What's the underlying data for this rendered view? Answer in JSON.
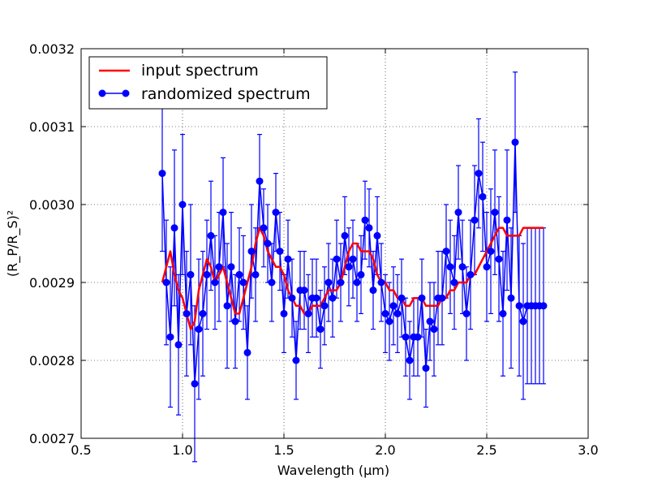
{
  "chart_data": {
    "type": "line",
    "xlabel": "Wavelength ($\\mu m$)",
    "xlabel_display": "Wavelength (μm)",
    "ylabel": "$(R_P/R_S)^2$",
    "ylabel_display": "(R_P/R_S)²",
    "xlim": [
      0.5,
      3.0
    ],
    "ylim": [
      0.0027,
      0.0032
    ],
    "xticks": [
      0.5,
      1.0,
      1.5,
      2.0,
      2.5,
      3.0
    ],
    "xtick_labels": [
      "0.5",
      "1.0",
      "1.5",
      "2.0",
      "2.5",
      "3.0"
    ],
    "yticks": [
      0.0027,
      0.0028,
      0.0029,
      0.003,
      0.0031,
      0.0032
    ],
    "ytick_labels": [
      "0.0027",
      "0.0028",
      "0.0029",
      "0.0030",
      "0.0031",
      "0.0032"
    ],
    "grid": true,
    "legend_position": "top-left",
    "series": [
      {
        "name": "input spectrum",
        "color": "#ff0000",
        "style": "line",
        "x": [
          0.9,
          0.92,
          0.94,
          0.96,
          0.98,
          1.0,
          1.02,
          1.04,
          1.06,
          1.08,
          1.1,
          1.12,
          1.14,
          1.16,
          1.18,
          1.2,
          1.22,
          1.24,
          1.26,
          1.28,
          1.3,
          1.32,
          1.34,
          1.36,
          1.38,
          1.4,
          1.42,
          1.44,
          1.46,
          1.48,
          1.5,
          1.52,
          1.54,
          1.56,
          1.58,
          1.6,
          1.62,
          1.64,
          1.66,
          1.68,
          1.7,
          1.72,
          1.74,
          1.76,
          1.78,
          1.8,
          1.82,
          1.84,
          1.86,
          1.88,
          1.9,
          1.92,
          1.94,
          1.96,
          1.98,
          2.0,
          2.02,
          2.04,
          2.06,
          2.08,
          2.1,
          2.12,
          2.14,
          2.16,
          2.18,
          2.2,
          2.22,
          2.24,
          2.26,
          2.28,
          2.3,
          2.32,
          2.34,
          2.36,
          2.38,
          2.4,
          2.42,
          2.44,
          2.46,
          2.48,
          2.5,
          2.52,
          2.54,
          2.56,
          2.58,
          2.6,
          2.62,
          2.64,
          2.66,
          2.68,
          2.7,
          2.72,
          2.74,
          2.76,
          2.78
        ],
        "y": [
          0.0029,
          0.00292,
          0.00294,
          0.00291,
          0.00289,
          0.00288,
          0.00286,
          0.00284,
          0.00285,
          0.00289,
          0.00291,
          0.00293,
          0.00292,
          0.0029,
          0.00291,
          0.00292,
          0.0029,
          0.00288,
          0.00286,
          0.00286,
          0.00288,
          0.0029,
          0.00292,
          0.00295,
          0.00297,
          0.00296,
          0.00294,
          0.00293,
          0.00292,
          0.00292,
          0.00291,
          0.00289,
          0.00288,
          0.00287,
          0.00287,
          0.00286,
          0.00286,
          0.00287,
          0.00287,
          0.00287,
          0.00288,
          0.00289,
          0.00289,
          0.00289,
          0.0029,
          0.00292,
          0.00294,
          0.00295,
          0.00295,
          0.00294,
          0.00294,
          0.00294,
          0.00293,
          0.00291,
          0.0029,
          0.0029,
          0.00289,
          0.00289,
          0.00288,
          0.00288,
          0.00287,
          0.00287,
          0.00288,
          0.00288,
          0.00288,
          0.00287,
          0.00287,
          0.00287,
          0.00287,
          0.00288,
          0.00288,
          0.00289,
          0.00289,
          0.0029,
          0.0029,
          0.0029,
          0.00291,
          0.00291,
          0.00292,
          0.00293,
          0.00294,
          0.00295,
          0.00296,
          0.00297,
          0.00297,
          0.00296,
          0.00296,
          0.00296,
          0.00296,
          0.00297,
          0.00297,
          0.00297,
          0.00297,
          0.00297,
          0.00297
        ]
      },
      {
        "name": "randomized spectrum",
        "color": "#0000ff",
        "style": "line-marker-errorbar",
        "x": [
          0.9,
          0.92,
          0.94,
          0.96,
          0.98,
          1.0,
          1.02,
          1.04,
          1.06,
          1.08,
          1.1,
          1.12,
          1.14,
          1.16,
          1.18,
          1.2,
          1.22,
          1.24,
          1.26,
          1.28,
          1.3,
          1.32,
          1.34,
          1.36,
          1.38,
          1.4,
          1.42,
          1.44,
          1.46,
          1.48,
          1.5,
          1.52,
          1.54,
          1.56,
          1.58,
          1.6,
          1.62,
          1.64,
          1.66,
          1.68,
          1.7,
          1.72,
          1.74,
          1.76,
          1.78,
          1.8,
          1.82,
          1.84,
          1.86,
          1.88,
          1.9,
          1.92,
          1.94,
          1.96,
          1.98,
          2.0,
          2.02,
          2.04,
          2.06,
          2.08,
          2.1,
          2.12,
          2.14,
          2.16,
          2.18,
          2.2,
          2.22,
          2.24,
          2.26,
          2.28,
          2.3,
          2.32,
          2.34,
          2.36,
          2.38,
          2.4,
          2.42,
          2.44,
          2.46,
          2.48,
          2.5,
          2.52,
          2.54,
          2.56,
          2.58,
          2.6,
          2.62,
          2.64,
          2.66,
          2.68,
          2.7,
          2.72,
          2.74,
          2.76,
          2.78
        ],
        "y": [
          0.00304,
          0.0029,
          0.00283,
          0.00297,
          0.00282,
          0.003,
          0.00286,
          0.00291,
          0.00277,
          0.00284,
          0.00286,
          0.00291,
          0.00296,
          0.0029,
          0.00292,
          0.00299,
          0.00287,
          0.00292,
          0.00285,
          0.00291,
          0.0029,
          0.00281,
          0.00294,
          0.00291,
          0.00303,
          0.00297,
          0.00295,
          0.0029,
          0.00299,
          0.00294,
          0.00286,
          0.00293,
          0.00288,
          0.0028,
          0.00289,
          0.00289,
          0.00286,
          0.00288,
          0.00288,
          0.00284,
          0.00287,
          0.0029,
          0.00288,
          0.00293,
          0.0029,
          0.00296,
          0.00292,
          0.00293,
          0.0029,
          0.00291,
          0.00298,
          0.00297,
          0.00289,
          0.00296,
          0.0029,
          0.00286,
          0.00285,
          0.00287,
          0.00286,
          0.00288,
          0.00283,
          0.0028,
          0.00283,
          0.00283,
          0.00288,
          0.00279,
          0.00285,
          0.00284,
          0.00288,
          0.00288,
          0.00294,
          0.00292,
          0.0029,
          0.00299,
          0.00292,
          0.00286,
          0.00291,
          0.00298,
          0.00304,
          0.00301,
          0.00292,
          0.00294,
          0.00299,
          0.00293,
          0.00286,
          0.00298,
          0.00288,
          0.00308,
          0.00287,
          0.00285,
          0.00287,
          0.00287,
          0.00287,
          0.00287,
          0.00287
        ],
        "yerr": [
          0.0001,
          8e-05,
          9e-05,
          0.0001,
          9e-05,
          9e-05,
          8e-05,
          9e-05,
          0.0001,
          9e-05,
          8e-05,
          7e-05,
          7e-05,
          6e-05,
          7e-05,
          7e-05,
          8e-05,
          7e-05,
          6e-05,
          6e-05,
          6e-05,
          6e-05,
          6e-05,
          6e-05,
          6e-05,
          5e-05,
          5e-05,
          5e-05,
          5e-05,
          5e-05,
          5e-05,
          5e-05,
          5e-05,
          5e-05,
          5e-05,
          5e-05,
          5e-05,
          5e-05,
          5e-05,
          5e-05,
          5e-05,
          5e-05,
          5e-05,
          5e-05,
          5e-05,
          5e-05,
          5e-05,
          5e-05,
          5e-05,
          5e-05,
          5e-05,
          5e-05,
          5e-05,
          5e-05,
          5e-05,
          5e-05,
          5e-05,
          5e-05,
          5e-05,
          5e-05,
          5e-05,
          5e-05,
          5e-05,
          5e-05,
          5e-05,
          5e-05,
          5e-05,
          6e-05,
          6e-05,
          6e-05,
          6e-05,
          6e-05,
          6e-05,
          6e-05,
          6e-05,
          6e-05,
          7e-05,
          7e-05,
          7e-05,
          7e-05,
          7e-05,
          8e-05,
          8e-05,
          8e-05,
          8e-05,
          9e-05,
          9e-05,
          9e-05,
          9e-05,
          0.0001,
          0.0001,
          0.0001,
          0.0001,
          0.0001,
          0.0001
        ]
      }
    ]
  }
}
